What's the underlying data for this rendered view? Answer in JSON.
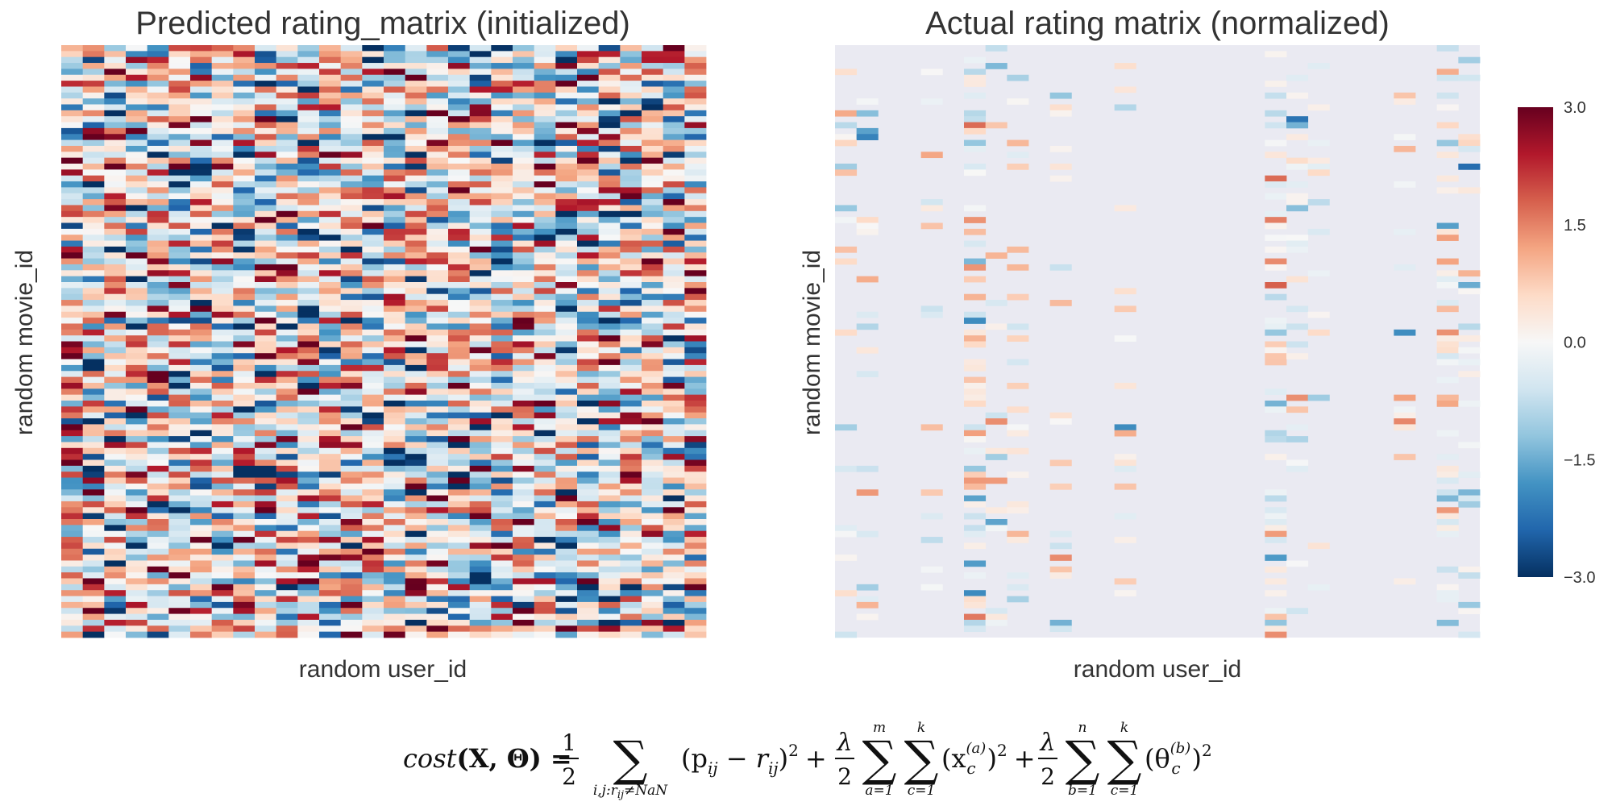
{
  "chart_data": [
    {
      "type": "heatmap",
      "title": "Predicted rating_matrix (initialized)",
      "xlabel": "random user_id",
      "ylabel": "random movie_id",
      "rows": 100,
      "cols": 30,
      "value_range": [
        -3.0,
        3.0
      ],
      "density": "dense",
      "colormap": "RdBu_r",
      "grid": false
    },
    {
      "type": "heatmap",
      "title": "Actual rating matrix (normalized)",
      "xlabel": "random user_id",
      "ylabel": "random movie_id",
      "rows": 100,
      "cols": 30,
      "value_range": [
        -3.0,
        3.0
      ],
      "density": "sparse",
      "missing_color": "#eaeaf2",
      "colormap": "RdBu_r",
      "grid": false
    }
  ],
  "colorbar": {
    "ticks": [
      "3.0",
      "1.5",
      "0.0",
      "−1.5",
      "−3.0"
    ],
    "tick_values": [
      3.0,
      1.5,
      0.0,
      -1.5,
      -3.0
    ],
    "colors": [
      "#67001f",
      "#b2182b",
      "#d6604d",
      "#f4a582",
      "#fddbc7",
      "#f7f7f7",
      "#d1e5f0",
      "#92c5de",
      "#4393c3",
      "#2166ac",
      "#053061"
    ]
  },
  "formula": {
    "lhs_fn": "cost",
    "lhs_args": "(X, Θ) =",
    "half": "1",
    "two": "2",
    "sum1_sub": "i,j:r",
    "sum1_sub_tail": "ij",
    "sum1_sub_cond": "≠NaN",
    "term1": "(p",
    "term1_i": "ij",
    "term1_mid": " − r",
    "term1_j": "ij",
    "term1_end": ")",
    "sq": "2",
    "plus": "+",
    "lambda": "λ",
    "sum_a_top": "m",
    "sum_a_bot": "a=1",
    "sum_c_top": "k",
    "sum_c_bot": "c=1",
    "term2": "(x",
    "term2_sup": "(a)",
    "term2_sub": "c",
    "term2_end": ")",
    "sum_b_top": "n",
    "sum_b_bot": "b=1",
    "term3": "(θ",
    "term3_sup": "(b)",
    "term3_sub": "c",
    "term3_end": ")"
  }
}
